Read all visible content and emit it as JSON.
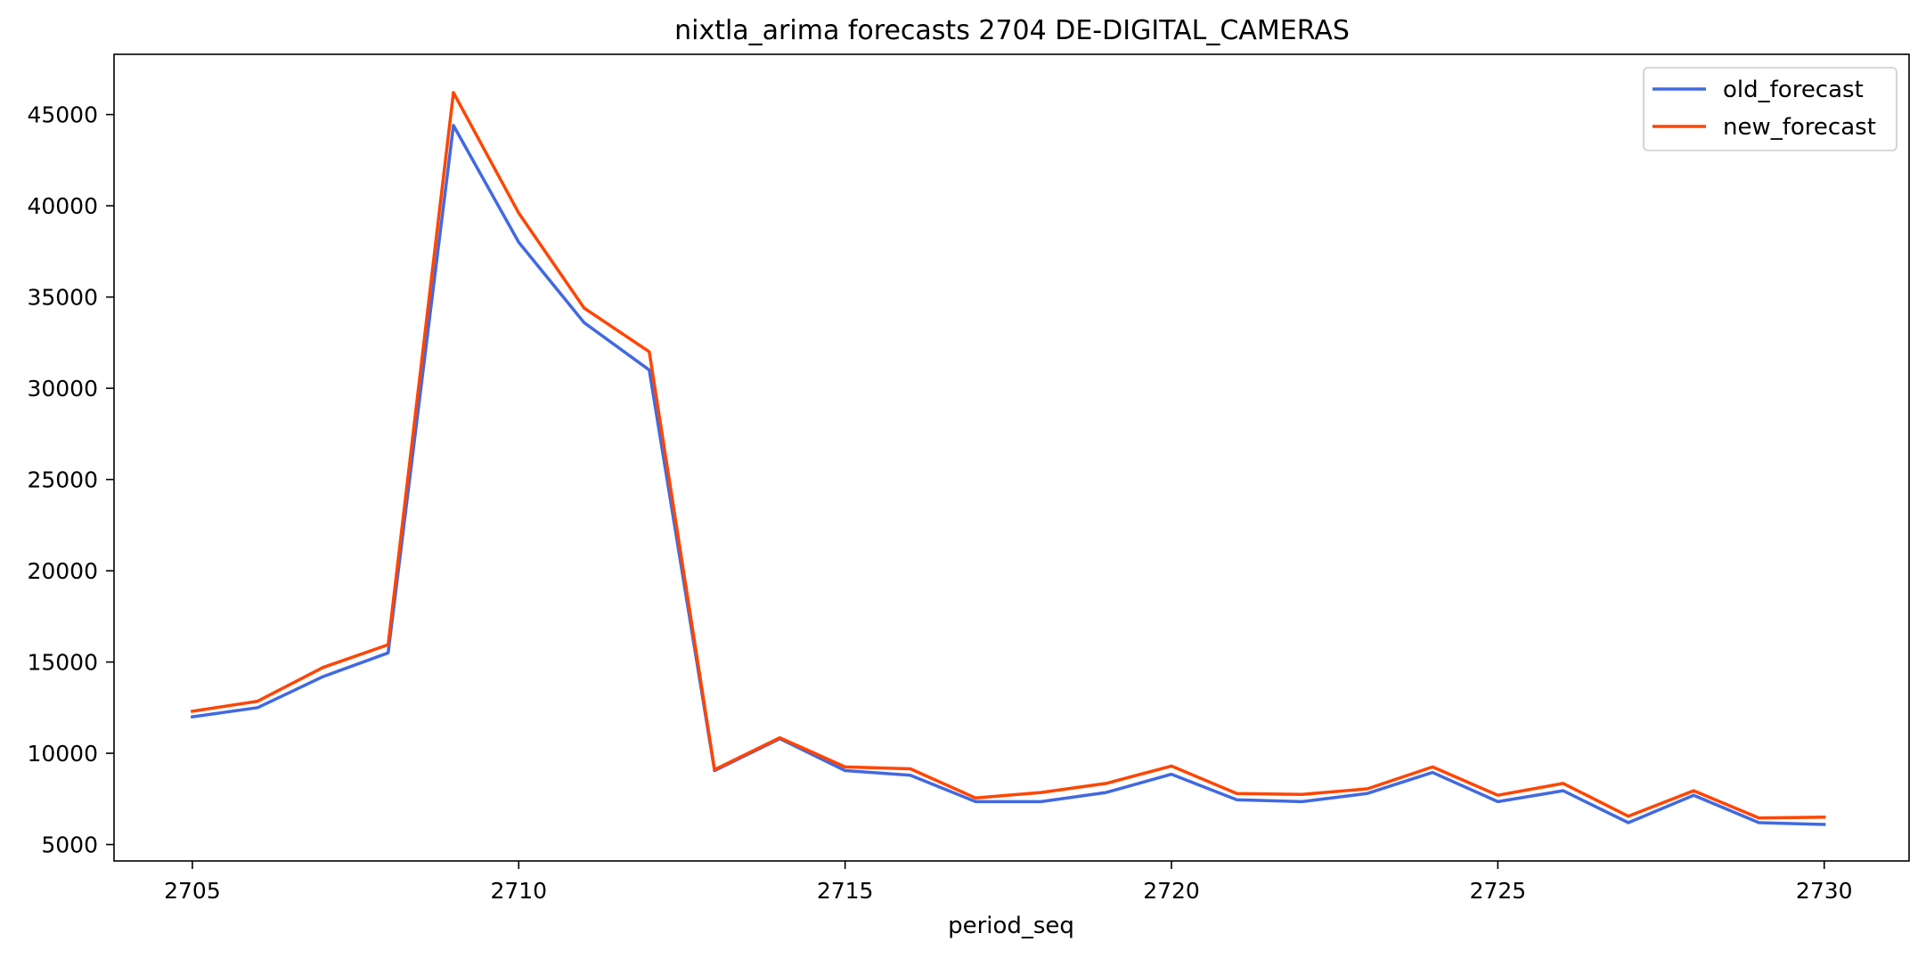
{
  "chart_data": {
    "type": "line",
    "title": "nixtla_arima forecasts 2704 DE-DIGITAL_CAMERAS",
    "xlabel": "period_seq",
    "ylabel": "",
    "x": [
      2705,
      2706,
      2707,
      2708,
      2709,
      2710,
      2711,
      2712,
      2713,
      2714,
      2715,
      2716,
      2717,
      2718,
      2719,
      2720,
      2721,
      2722,
      2723,
      2724,
      2725,
      2726,
      2727,
      2728,
      2729,
      2730
    ],
    "series": [
      {
        "name": "old_forecast",
        "color": "#4169E1",
        "values": [
          12000,
          12500,
          14200,
          15500,
          44400,
          38000,
          33600,
          31000,
          9050,
          10800,
          9050,
          8800,
          7350,
          7350,
          7850,
          8850,
          7450,
          7350,
          7800,
          8950,
          7350,
          7950,
          6200,
          7700,
          6200,
          6100
        ]
      },
      {
        "name": "new_forecast",
        "color": "#FF4500",
        "values": [
          12300,
          12850,
          14700,
          15950,
          46200,
          39600,
          34400,
          32000,
          9100,
          10850,
          9250,
          9150,
          7550,
          7850,
          8350,
          9300,
          7800,
          7750,
          8050,
          9250,
          7700,
          8350,
          6550,
          7950,
          6450,
          6500
        ]
      }
    ],
    "xlim": [
      2703.8,
      2731.3
    ],
    "ylim": [
      4100,
      48300
    ],
    "xticks": [
      2705,
      2710,
      2715,
      2720,
      2725,
      2730
    ],
    "yticks": [
      5000,
      10000,
      15000,
      20000,
      25000,
      30000,
      35000,
      40000,
      45000
    ],
    "grid": false,
    "legend_position": "top-right"
  }
}
